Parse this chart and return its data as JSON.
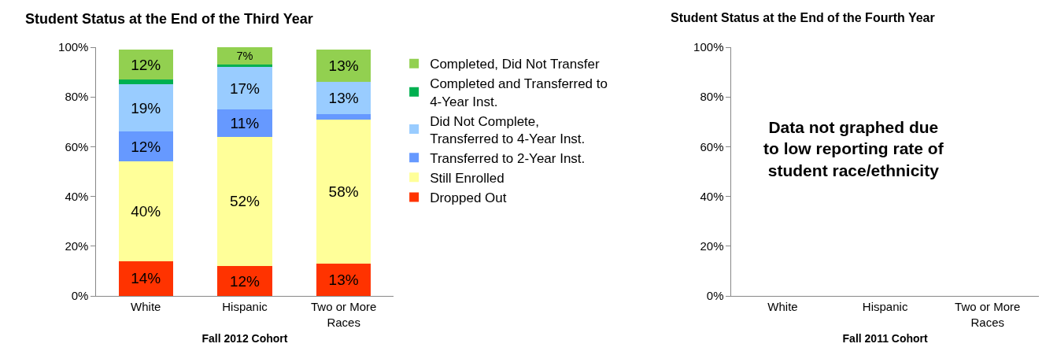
{
  "chart_data": [
    {
      "type": "bar",
      "title": "Student Status at the End of the Third Year",
      "xlabel": "Fall 2012 Cohort",
      "categories": [
        "White",
        "Hispanic",
        "Two or More Races"
      ],
      "stacked": true,
      "legend": "right",
      "grid": false,
      "ylim": [
        0,
        100
      ],
      "yticks": [
        {
          "value": 0,
          "label": "0%"
        },
        {
          "value": 20,
          "label": "20%"
        },
        {
          "value": 40,
          "label": "40%"
        },
        {
          "value": 60,
          "label": "60%"
        },
        {
          "value": 80,
          "label": "80%"
        },
        {
          "value": 100,
          "label": "100%"
        }
      ],
      "series": [
        {
          "name": "Dropped Out",
          "color": "#ff3300",
          "values": [
            14,
            12,
            13
          ],
          "value_labels": [
            "14%",
            "12%",
            "13%"
          ]
        },
        {
          "name": "Still Enrolled",
          "color": "#ffff99",
          "values": [
            40,
            52,
            58
          ],
          "value_labels": [
            "40%",
            "52%",
            "58%"
          ]
        },
        {
          "name": "Transferred to 2-Year Inst.",
          "color": "#6699ff",
          "values": [
            12,
            11,
            2
          ],
          "value_labels": [
            "12%",
            "11%",
            null
          ]
        },
        {
          "name": "Did Not Complete, Transferred to 4-Year Inst.",
          "color": "#99ccff",
          "values": [
            19,
            17,
            13
          ],
          "value_labels": [
            "19%",
            "17%",
            "13%"
          ]
        },
        {
          "name": "Completed and Transferred to 4-Year Inst.",
          "color": "#00b050",
          "values": [
            2,
            1,
            0
          ],
          "value_labels": [
            null,
            null,
            null
          ]
        },
        {
          "name": "Completed, Did Not Transfer",
          "color": "#92d050",
          "values": [
            12,
            7,
            13
          ],
          "value_labels": [
            "12%",
            "7%",
            "13%"
          ]
        }
      ]
    },
    {
      "type": "bar",
      "title": "Student Status at the End of the Fourth Year",
      "xlabel": "Fall 2011 Cohort",
      "categories": [
        "White",
        "Hispanic",
        "Two or More Races"
      ],
      "legend": false,
      "grid": false,
      "ylim": [
        0,
        100
      ],
      "yticks": [
        {
          "value": 0,
          "label": "0%"
        },
        {
          "value": 20,
          "label": "20%"
        },
        {
          "value": 40,
          "label": "40%"
        },
        {
          "value": 60,
          "label": "60%"
        },
        {
          "value": 80,
          "label": "80%"
        },
        {
          "value": 100,
          "label": "100%"
        }
      ],
      "annotations": [
        "Data not graphed due\nto low reporting rate of\nstudent race/ethnicity"
      ]
    }
  ]
}
